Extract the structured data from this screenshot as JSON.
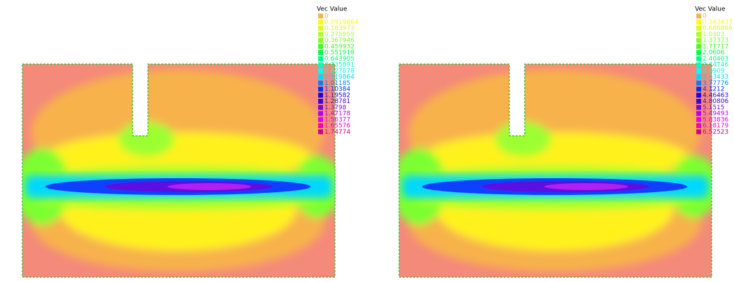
{
  "panels": [
    {
      "legend": {
        "title": "Vec Value",
        "entries": [
          {
            "label": "0",
            "color": "#f5b34a"
          },
          {
            "label": "0.0919864",
            "color": "#ffff00"
          },
          {
            "label": "0.183973",
            "color": "#d8ff1a"
          },
          {
            "label": "0.275959",
            "color": "#b0ff20"
          },
          {
            "label": "0.367946",
            "color": "#80ff20"
          },
          {
            "label": "0.459932",
            "color": "#40ff20"
          },
          {
            "label": "0.551918",
            "color": "#00ff40"
          },
          {
            "label": "0.643905",
            "color": "#00ff80"
          },
          {
            "label": "0.735891",
            "color": "#00ffc0"
          },
          {
            "label": "0.827878",
            "color": "#00ffff"
          },
          {
            "label": "0.919864",
            "color": "#00d8ff"
          },
          {
            "label": "1.01185",
            "color": "#0080ff"
          },
          {
            "label": "1.10384",
            "color": "#0030ff"
          },
          {
            "label": "1.19582",
            "color": "#2000e0"
          },
          {
            "label": "1.28781",
            "color": "#4000d0"
          },
          {
            "label": "1.3798",
            "color": "#8000e0"
          },
          {
            "label": "1.47178",
            "color": "#b000f0"
          },
          {
            "label": "1.56377",
            "color": "#e000f0"
          },
          {
            "label": "1.65576",
            "color": "#f000c0"
          },
          {
            "label": "1.74774",
            "color": "#d00080"
          }
        ]
      }
    },
    {
      "legend": {
        "title": "Vec Value",
        "entries": [
          {
            "label": "0",
            "color": "#f5b34a"
          },
          {
            "label": "0.343433",
            "color": "#ffff00"
          },
          {
            "label": "0.686866",
            "color": "#d8ff1a"
          },
          {
            "label": "1.0303",
            "color": "#b0ff20"
          },
          {
            "label": "1.37373",
            "color": "#80ff20"
          },
          {
            "label": "1.71717",
            "color": "#40ff20"
          },
          {
            "label": "2.0606",
            "color": "#00ff40"
          },
          {
            "label": "2.40403",
            "color": "#00ff80"
          },
          {
            "label": "2.74746",
            "color": "#00ffc0"
          },
          {
            "label": "3.0909",
            "color": "#00ffff"
          },
          {
            "label": "3.43433",
            "color": "#00d8ff"
          },
          {
            "label": "3.77776",
            "color": "#0080ff"
          },
          {
            "label": "4.1212",
            "color": "#0030ff"
          },
          {
            "label": "4.46463",
            "color": "#2000e0"
          },
          {
            "label": "4.80806",
            "color": "#4000d0"
          },
          {
            "label": "5.1515",
            "color": "#8000e0"
          },
          {
            "label": "5.49493",
            "color": "#b000f0"
          },
          {
            "label": "5.83836",
            "color": "#e000f0"
          },
          {
            "label": "6.18179",
            "color": "#f000c0"
          },
          {
            "label": "6.52523",
            "color": "#d00080"
          }
        ]
      }
    }
  ]
}
